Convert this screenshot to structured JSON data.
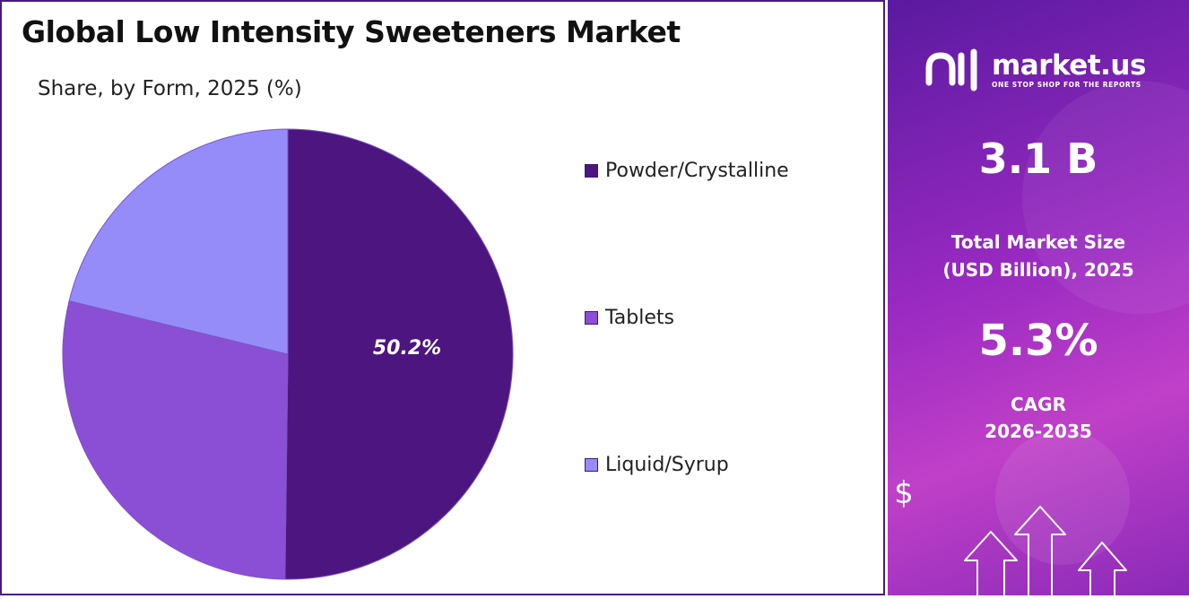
{
  "title": "Global Low Intensity Sweeteners Market",
  "subtitle": "Share, by Form, 2025 (%)",
  "colors": {
    "powder": "#4d1580",
    "tablets": "#8b4fd6",
    "liquid": "#958cfa",
    "border": "#4a1a7e"
  },
  "chart_data": {
    "type": "pie",
    "title": "Global Low Intensity Sweeteners Market",
    "subtitle": "Share, by Form, 2025 (%)",
    "categories": [
      "Powder/Crystalline",
      "Tablets",
      "Liquid/Syrup"
    ],
    "values": [
      50.2,
      28.6,
      21.2
    ],
    "data_labels": [
      "50.2%",
      "",
      ""
    ],
    "colors": [
      "#4d1580",
      "#8b4fd6",
      "#958cfa"
    ],
    "legend_position": "right"
  },
  "sidebar": {
    "brand_name": "market.us",
    "brand_tagline": "ONE STOP SHOP FOR THE REPORTS",
    "market_size_value": "3.1 B",
    "market_size_label_line1": "Total Market Size",
    "market_size_label_line2": "(USD Billion), 2025",
    "cagr_value": "5.3%",
    "cagr_label_line1": "CAGR",
    "cagr_label_line2": "2026-2035",
    "dollar_symbol": "$",
    "logo_icon": "market-us-logo-icon",
    "arrows_icon": "growth-arrows-icon"
  }
}
